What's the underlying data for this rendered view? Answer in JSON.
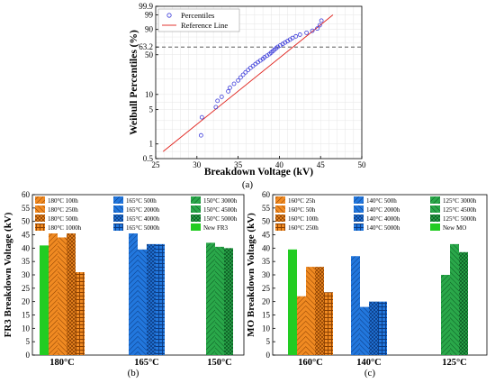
{
  "panel_labels": [
    "(a)",
    "(b)",
    "(c)"
  ],
  "colors": {
    "percentile_marker": "#3b3bd9",
    "reference_line": "#e0201a",
    "ref_63": "#444444",
    "new_fill": "#22cc22",
    "orange": "#f08a22",
    "blue": "#2277dd",
    "green": "#2aa84a"
  },
  "chart_data": [
    {
      "id": "a",
      "type": "scatter",
      "title": "",
      "xlabel": "Breakdown Voltage (kV)",
      "ylabel": "Weibull Percentiles (%)",
      "xlim": [
        25,
        50
      ],
      "xticks": [
        "25",
        "30",
        "35",
        "40",
        "45",
        "50"
      ],
      "y_scale": "weibull",
      "yticks": [
        "0.5",
        "1",
        "5",
        "10",
        "50",
        "63.2",
        "90",
        "99",
        "99.9"
      ],
      "ytick_values": [
        0.5,
        1,
        5,
        10,
        50,
        63.2,
        90,
        99,
        99.9
      ],
      "grid": true,
      "legend": {
        "position": "top-left",
        "entries": [
          "Percentiles",
          "Reference Line"
        ]
      },
      "reference_hline": 63.2,
      "series": [
        {
          "name": "Percentiles",
          "type": "scatter",
          "points": [
            [
              30.5,
              1.5
            ],
            [
              30.6,
              3.5
            ],
            [
              32.3,
              5.6
            ],
            [
              32.5,
              7.5
            ],
            [
              33.0,
              9.0
            ],
            [
              33.8,
              11.5
            ],
            [
              34.0,
              13.5
            ],
            [
              34.5,
              16.0
            ],
            [
              35.0,
              18.5
            ],
            [
              35.3,
              21.0
            ],
            [
              35.6,
              23.5
            ],
            [
              35.9,
              26.0
            ],
            [
              36.2,
              28.5
            ],
            [
              36.5,
              31.0
            ],
            [
              36.8,
              33.5
            ],
            [
              37.1,
              36.0
            ],
            [
              37.4,
              38.5
            ],
            [
              37.7,
              41.0
            ],
            [
              38.0,
              43.5
            ],
            [
              38.2,
              46.0
            ],
            [
              38.5,
              48.5
            ],
            [
              38.8,
              51.0
            ],
            [
              39.0,
              53.5
            ],
            [
              39.2,
              56.0
            ],
            [
              39.4,
              58.5
            ],
            [
              39.6,
              61.0
            ],
            [
              39.8,
              63.5
            ],
            [
              40.1,
              66.0
            ],
            [
              40.4,
              68.5
            ],
            [
              40.7,
              71.0
            ],
            [
              41.0,
              73.5
            ],
            [
              41.3,
              76.0
            ],
            [
              41.6,
              78.5
            ],
            [
              42.0,
              81.0
            ],
            [
              42.5,
              83.5
            ],
            [
              43.3,
              86.0
            ],
            [
              44.0,
              88.5
            ],
            [
              44.6,
              91.0
            ],
            [
              44.9,
              94.0
            ],
            [
              45.1,
              97.0
            ]
          ]
        },
        {
          "name": "Reference Line",
          "type": "line",
          "points": [
            [
              25.9,
              0.7
            ],
            [
              46.5,
              99.0
            ]
          ]
        }
      ]
    },
    {
      "id": "b",
      "type": "bar",
      "title": "",
      "xlabel": "",
      "ylabel": "FR3 Breakdown Voltage (kV)",
      "ylim": [
        0,
        60
      ],
      "yticks": [
        "0",
        "5",
        "10",
        "15",
        "20",
        "25",
        "30",
        "35",
        "40",
        "45",
        "50",
        "55",
        "60"
      ],
      "categories": [
        "180°C",
        "165°C",
        "150°C"
      ],
      "legend": {
        "position": "top",
        "columns": [
          [
            "180°C 100h",
            "180°C 250h",
            "180°C 500h",
            "180°C 1000h"
          ],
          [
            "165°C 500h",
            "165°C 2000h",
            "165°C 4000h",
            "165°C 5000h"
          ],
          [
            "150°C 3000h",
            "150°C 4500h",
            "150°C 5000h",
            "New FR3"
          ]
        ]
      },
      "groups": [
        {
          "category": "180°C",
          "bars": [
            {
              "name": "New FR3",
              "value": 41,
              "color": "green-solid"
            },
            {
              "name": "180°C 100h",
              "value": 45.5,
              "color": "orange"
            },
            {
              "name": "180°C 250h",
              "value": 44,
              "color": "orange"
            },
            {
              "name": "180°C 500h",
              "value": 45.5,
              "color": "orange"
            },
            {
              "name": "180°C 1000h",
              "value": 31,
              "color": "orange"
            }
          ]
        },
        {
          "category": "165°C",
          "bars": [
            {
              "name": "165°C 500h",
              "value": 45.5,
              "color": "blue"
            },
            {
              "name": "165°C 2000h",
              "value": 39.5,
              "color": "blue"
            },
            {
              "name": "165°C 4000h",
              "value": 41.5,
              "color": "blue"
            },
            {
              "name": "165°C 5000h",
              "value": 41.5,
              "color": "blue"
            }
          ]
        },
        {
          "category": "150°C",
          "bars": [
            {
              "name": "150°C 3000h",
              "value": 42,
              "color": "green"
            },
            {
              "name": "150°C 4500h",
              "value": 40.5,
              "color": "green"
            },
            {
              "name": "150°C 5000h",
              "value": 40,
              "color": "green"
            }
          ]
        }
      ]
    },
    {
      "id": "c",
      "type": "bar",
      "title": "",
      "xlabel": "",
      "ylabel": "MO Breakdown Voltage (kV)",
      "ylim": [
        0,
        60
      ],
      "yticks": [
        "0",
        "5",
        "10",
        "15",
        "20",
        "25",
        "30",
        "35",
        "40",
        "45",
        "50",
        "55",
        "60"
      ],
      "categories": [
        "160°C",
        "140°C",
        "125°C"
      ],
      "legend": {
        "position": "top",
        "columns": [
          [
            "160°C 25h",
            "160°C 50h",
            "160°C 100h",
            "160°C 250h"
          ],
          [
            "140°C 500h",
            "140°C 2000h",
            "140°C 4000h",
            "140°C 5000h"
          ],
          [
            "125°C 3000h",
            "125°C 4500h",
            "125°C 5000h",
            "New MO"
          ]
        ]
      },
      "groups": [
        {
          "category": "160°C",
          "bars": [
            {
              "name": "New MO",
              "value": 39.5,
              "color": "green-solid"
            },
            {
              "name": "160°C 25h",
              "value": 22,
              "color": "orange"
            },
            {
              "name": "160°C 50h",
              "value": 33,
              "color": "orange"
            },
            {
              "name": "160°C 100h",
              "value": 33,
              "color": "orange"
            },
            {
              "name": "160°C 250h",
              "value": 23.5,
              "color": "orange"
            }
          ]
        },
        {
          "category": "140°C",
          "bars": [
            {
              "name": "140°C 500h",
              "value": 37,
              "color": "blue"
            },
            {
              "name": "140°C 2000h",
              "value": 18,
              "color": "blue"
            },
            {
              "name": "140°C 4000h",
              "value": 20,
              "color": "blue"
            },
            {
              "name": "140°C 5000h",
              "value": 20,
              "color": "blue"
            }
          ]
        },
        {
          "category": "125°C",
          "bars": [
            {
              "name": "125°C 3000h",
              "value": 30,
              "color": "green"
            },
            {
              "name": "125°C 4500h",
              "value": 41.5,
              "color": "green"
            },
            {
              "name": "125°C 5000h",
              "value": 38.5,
              "color": "green"
            }
          ]
        }
      ]
    }
  ]
}
